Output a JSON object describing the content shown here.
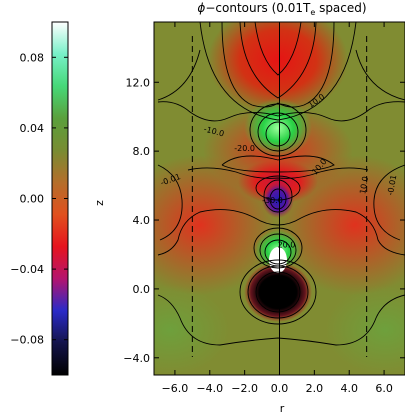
{
  "chart_data": {
    "type": "heatmap",
    "title_prefix": "ϕ",
    "title_rest": "−contours (0.01T",
    "title_sub": "e",
    "title_suffix": " spaced)",
    "xlabel": "r",
    "ylabel": "z",
    "xlim": [
      -7.2,
      7.2
    ],
    "ylim": [
      -5.0,
      15.5
    ],
    "x_ticks": [
      -6.0,
      -4.0,
      -2.0,
      0.0,
      2.0,
      4.0,
      6.0
    ],
    "x_tick_labels": [
      "−6.0",
      "−4.0",
      "−2.0",
      "0.0",
      "2.0",
      "4.0",
      "6.0"
    ],
    "y_ticks": [
      -4.0,
      0.0,
      4.0,
      8.0,
      12.0
    ],
    "y_tick_labels": [
      "−4.0",
      "0.0",
      "4.0",
      "8.0",
      "12.0"
    ],
    "dashed_lines_r": [
      -5.0,
      5.0
    ],
    "colorbar": {
      "range": [
        -0.1,
        0.1
      ],
      "ticks": [
        0.08,
        0.04,
        0.0,
        -0.04,
        -0.08
      ],
      "tick_labels": [
        "0.08",
        "0.04",
        "0.00",
        "−0.04",
        "−0.08"
      ],
      "colors": [
        "#000000",
        "#14144a",
        "#2a2ac8",
        "#b4146e",
        "#e6141e",
        "#e0501e",
        "#b46e2a",
        "#788c32",
        "#5aa03c",
        "#46d878",
        "#78f0c8",
        "#ffffff"
      ]
    },
    "contour_labels": [
      {
        "text": "10.0",
        "r": 2.2,
        "z": 10.8,
        "angle": -35
      },
      {
        "text": "-10.0",
        "r": -3.8,
        "z": 9.0,
        "angle": 15
      },
      {
        "text": "-20.0",
        "r": -2.0,
        "z": 8.0,
        "angle": 0
      },
      {
        "text": "10.0",
        "r": 2.4,
        "z": 7.0,
        "angle": -50
      },
      {
        "text": "-0.01",
        "r": -6.2,
        "z": 6.2,
        "angle": -20
      },
      {
        "text": "10.0",
        "r": 5.0,
        "z": 6.0,
        "angle": -80
      },
      {
        "text": "-0.01",
        "r": 6.6,
        "z": 6.0,
        "angle": -80
      },
      {
        "text": "-30.0",
        "r": -0.4,
        "z": 5.0,
        "angle": 0
      },
      {
        "text": "20.0",
        "r": 0.4,
        "z": 2.4,
        "angle": 0
      }
    ]
  }
}
